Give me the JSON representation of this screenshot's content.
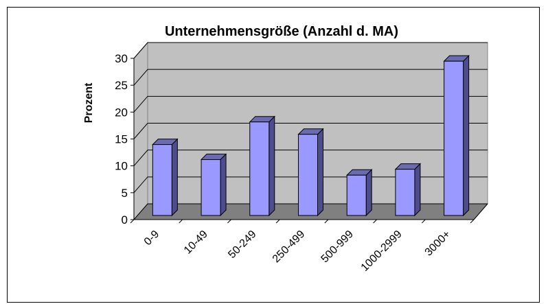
{
  "chart_data": {
    "type": "bar3d",
    "title": "Unternehmensgröße  (Anzahl d. MA)",
    "y_label": "Prozent",
    "categories": [
      "0-9",
      "10-49",
      "50-249",
      "250-499",
      "500-999",
      "1000-2999",
      "3000+"
    ],
    "values": [
      13.2,
      10.4,
      17.4,
      15.1,
      7.5,
      8.6,
      28.7
    ],
    "color": "#9999ff",
    "ylim": [
      0,
      30
    ],
    "yticks": [
      0,
      5,
      10,
      15,
      20,
      25,
      30
    ],
    "grid": true
  }
}
